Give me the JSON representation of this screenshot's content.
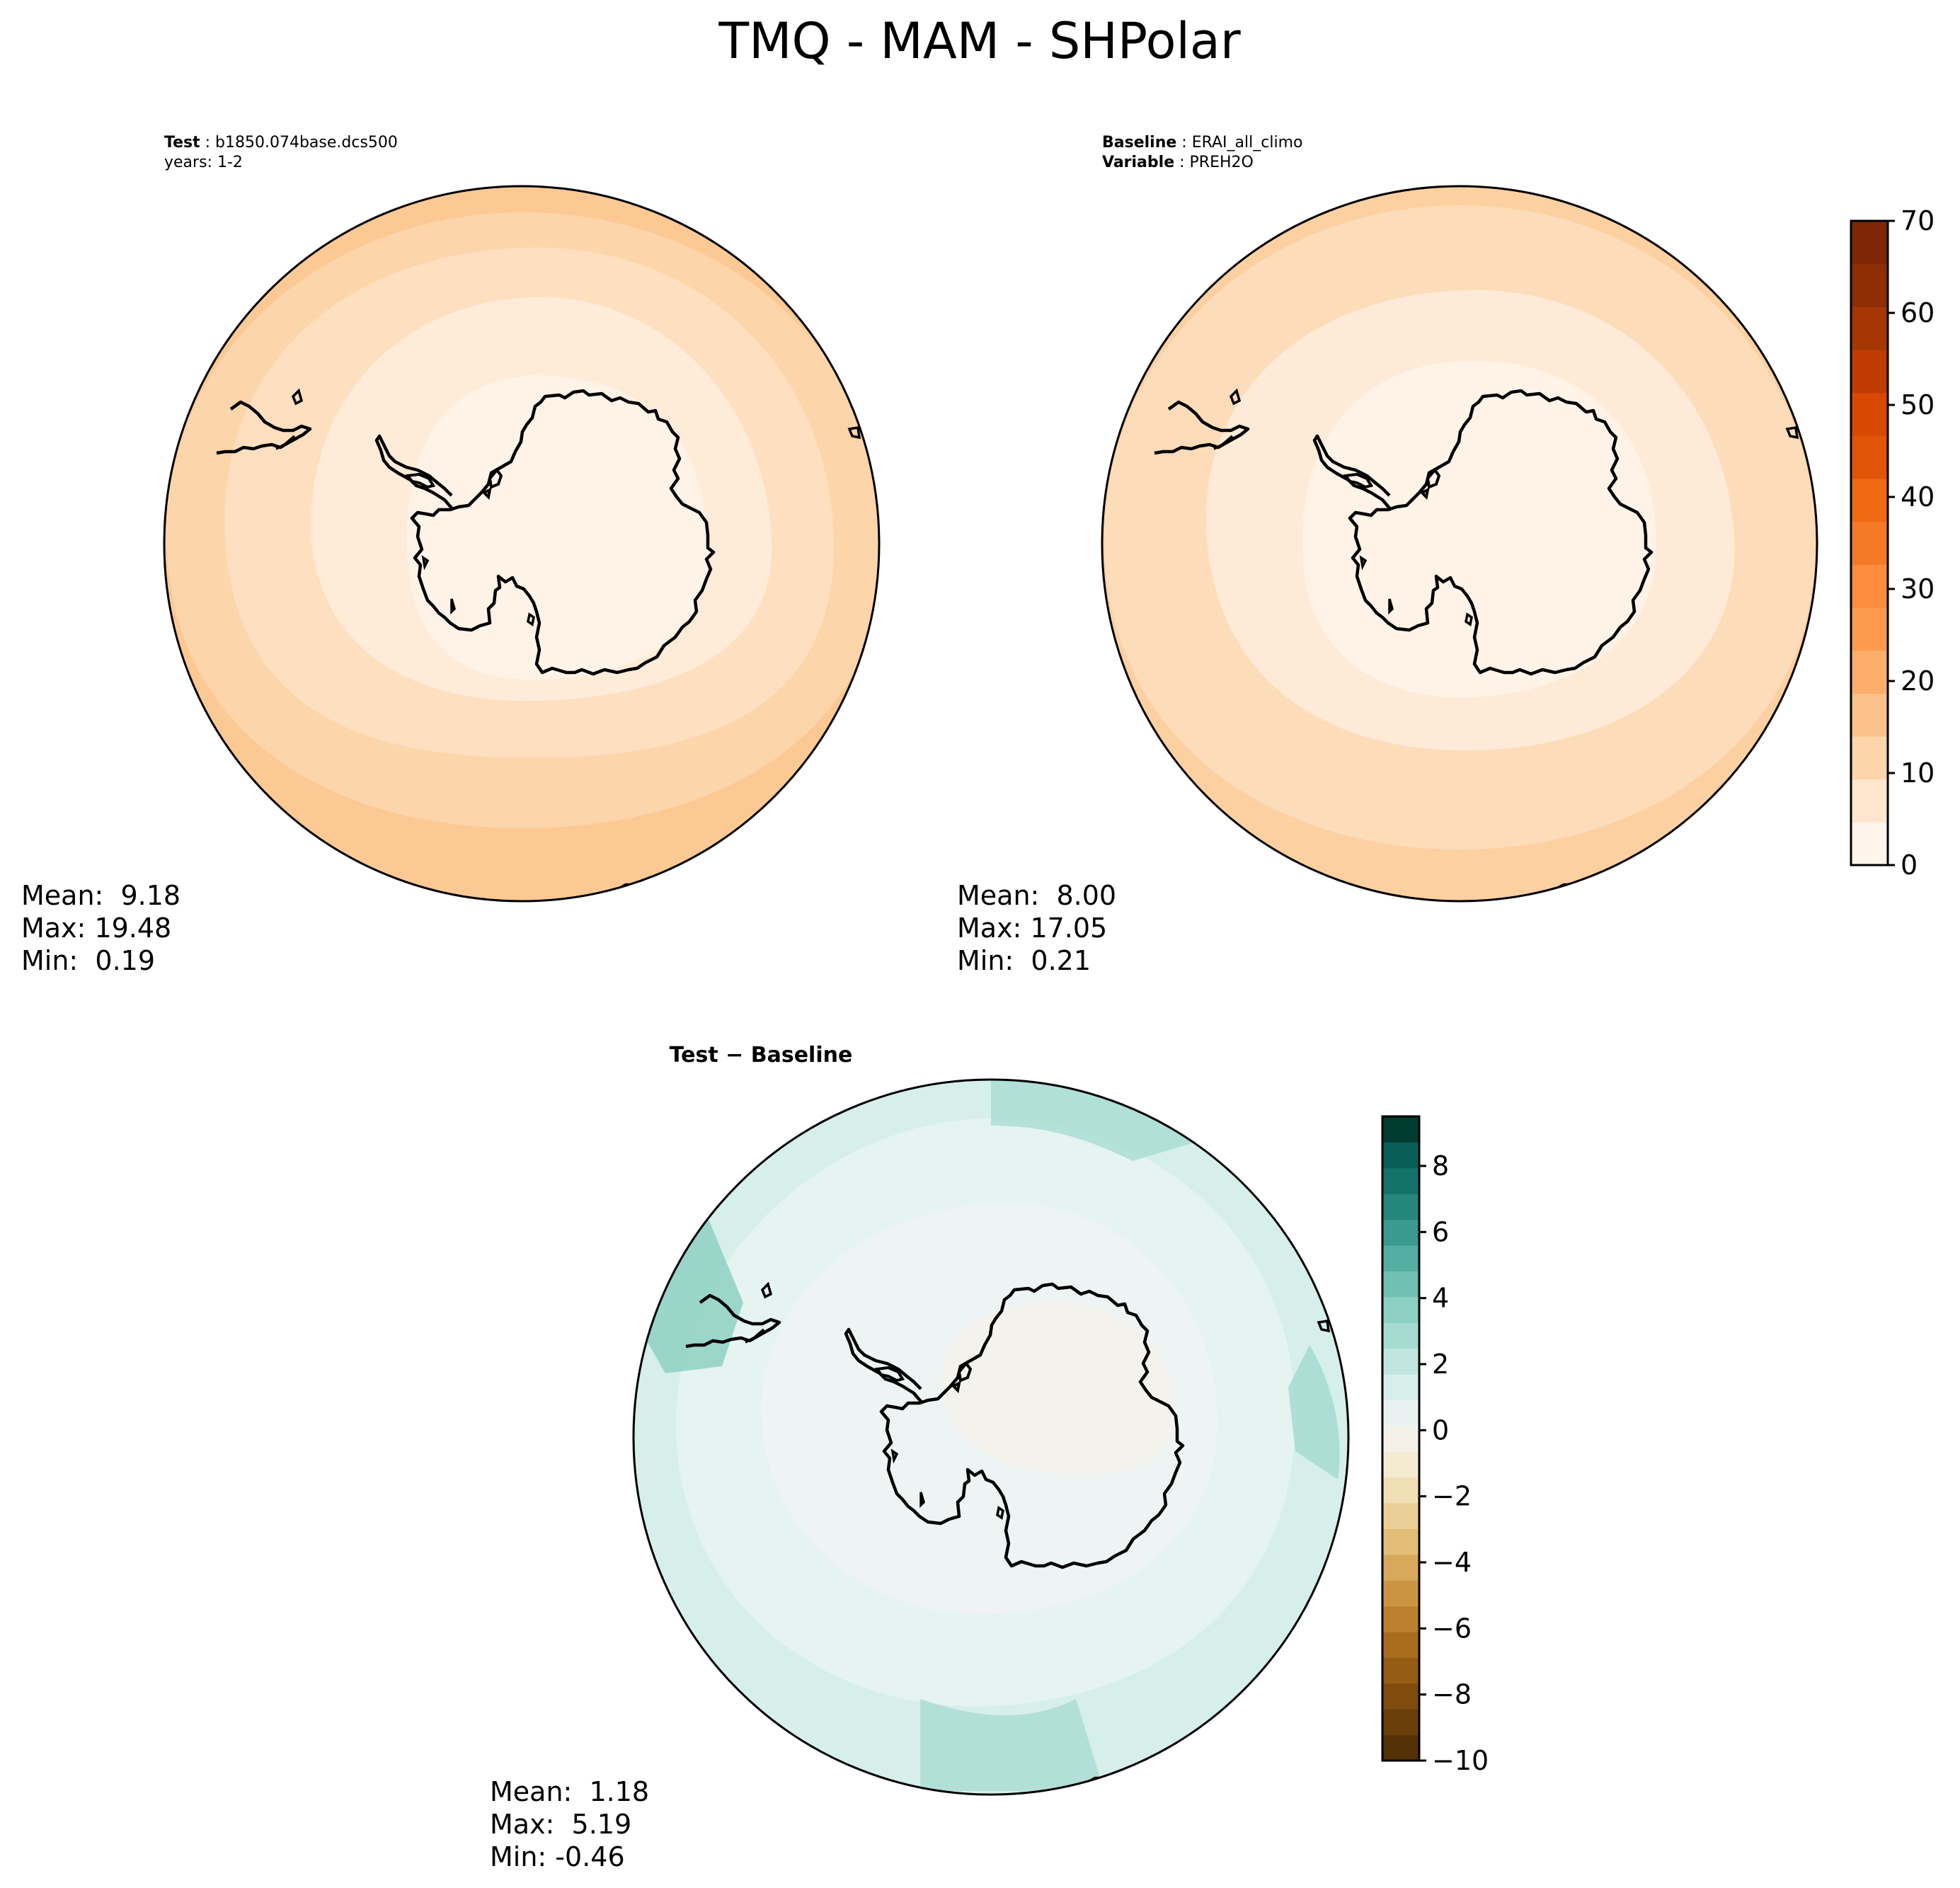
{
  "figure": {
    "title": "TMQ - MAM - SHPolar"
  },
  "panels": {
    "test": {
      "label_key": "Test",
      "label_value": "b1850.074base.dcs500",
      "years_line": "years: 1-2",
      "stats": {
        "mean": "Mean:  9.18",
        "max": "Max: 19.48",
        "min": "Min:  0.19"
      }
    },
    "baseline": {
      "label_key": "Baseline",
      "label_value": "ERAI_all_climo",
      "variable_key": "Variable",
      "variable_value": "PREH2O",
      "stats": {
        "mean": "Mean:  8.00",
        "max": "Max: 17.05",
        "min": "Min:  0.21"
      }
    },
    "diff": {
      "title": "Test − Baseline",
      "stats": {
        "mean": "Mean:  1.18",
        "max": "Max:  5.19",
        "min": "Min: -0.46"
      }
    }
  },
  "chart_data": [
    {
      "type": "heatmap",
      "name": "test",
      "projection": "south-polar-stereographic",
      "value_range": [
        0,
        70
      ],
      "rings": [
        {
          "level": "15-20",
          "color": "#fdd0a2"
        },
        {
          "level": "10-15",
          "color": "#fdddbc"
        },
        {
          "level": "5-10",
          "color": "#feead6"
        },
        {
          "level": "0-5",
          "color": "#fff5eb"
        }
      ]
    },
    {
      "type": "heatmap",
      "name": "baseline",
      "projection": "south-polar-stereographic",
      "value_range": [
        0,
        70
      ],
      "rings": [
        {
          "level": "15-20",
          "color": "#fdd5ab"
        },
        {
          "level": "10-15",
          "color": "#fde0c2"
        },
        {
          "level": "5-10",
          "color": "#feecd9"
        },
        {
          "level": "0-5",
          "color": "#fff5eb"
        }
      ]
    },
    {
      "type": "heatmap",
      "name": "difference",
      "projection": "south-polar-stereographic",
      "value_range": [
        -10,
        9.5
      ]
    }
  ],
  "colorbar_top": {
    "ticks": [
      "0",
      "10",
      "20",
      "30",
      "40",
      "50",
      "60",
      "70"
    ],
    "tick_values": [
      0,
      10,
      20,
      30,
      40,
      50,
      60,
      70
    ],
    "range": [
      0,
      70
    ],
    "colors": [
      "#fff5eb",
      "#fee6ce",
      "#fdd5ab",
      "#fdc28c",
      "#fdae6b",
      "#fd9a4e",
      "#fd8d3c",
      "#f57a27",
      "#f16913",
      "#e25508",
      "#d94801",
      "#bf3b02",
      "#a63603",
      "#8f2d04",
      "#7f2704"
    ]
  },
  "colorbar_diff": {
    "ticks": [
      "8",
      "6",
      "4",
      "2",
      "0",
      "−2",
      "−4",
      "−6",
      "−8",
      "−10"
    ],
    "tick_values": [
      8,
      6,
      4,
      2,
      0,
      -2,
      -4,
      -6,
      -8,
      -10
    ],
    "range": [
      -10,
      9.5
    ],
    "colors": [
      "#543005",
      "#6a3e09",
      "#7f4c0e",
      "#955c14",
      "#a96c1d",
      "#bc802e",
      "#cb9443",
      "#d8a95a",
      "#e2bd77",
      "#eacf96",
      "#f1dfb5",
      "#f5ebd2",
      "#f4f1e8",
      "#e9f2f0",
      "#d7eeea",
      "#c0e6df",
      "#a6dbd2",
      "#8ccfc3",
      "#70c0b3",
      "#54aea2",
      "#3a9a8f",
      "#25867c",
      "#13726a",
      "#085f57",
      "#003c30"
    ]
  }
}
